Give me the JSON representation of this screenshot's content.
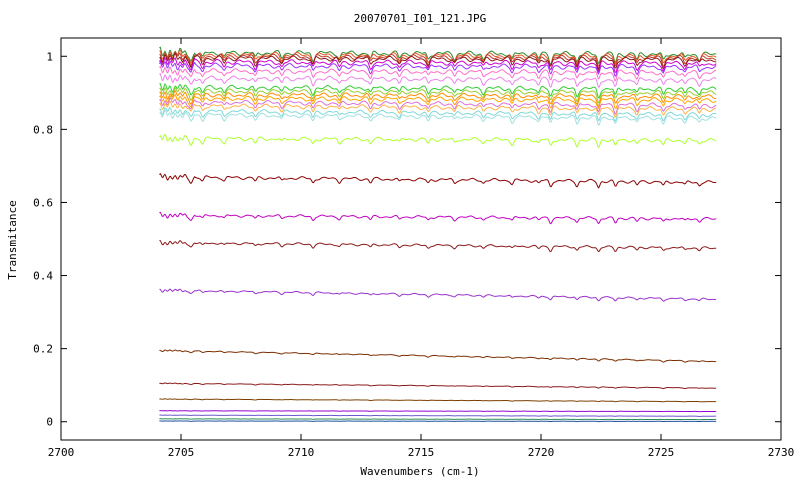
{
  "chart_data": {
    "type": "line",
    "title": "20070701_I01_121.JPG",
    "xlabel": "Wavenumbers (cm-1)",
    "ylabel": "Transmitance",
    "xlim": [
      2700,
      2730
    ],
    "ylim": [
      -0.05,
      1.05
    ],
    "x_ticks": [
      2700,
      2705,
      2710,
      2715,
      2720,
      2725,
      2730
    ],
    "y_ticks": [
      0,
      0.2,
      0.4,
      0.6,
      0.8,
      1
    ],
    "x_tick_labels": [
      "2700",
      "2705",
      "2710",
      "2715",
      "2720",
      "2725",
      "2730"
    ],
    "y_tick_labels": [
      "0",
      "0.2",
      "0.4",
      "0.6",
      "0.8",
      "1"
    ],
    "x_range_data": [
      2704.1,
      2727.3
    ],
    "grid": false,
    "legend": "none",
    "series": [
      {
        "color": "#2d8c2d",
        "values": [
          1.01,
          1.005
        ]
      },
      {
        "color": "#e05a2a",
        "values": [
          1.005,
          1.0
        ]
      },
      {
        "color": "#c0392b",
        "values": [
          1.0,
          0.995
        ]
      },
      {
        "color": "#8b1a1a",
        "values": [
          0.995,
          0.99
        ]
      },
      {
        "color": "#cc00cc",
        "values": [
          0.985,
          0.98
        ]
      },
      {
        "color": "#9b30ff",
        "values": [
          0.975,
          0.97
        ]
      },
      {
        "color": "#ff6ec7",
        "values": [
          0.96,
          0.955
        ]
      },
      {
        "color": "#ee82ee",
        "values": [
          0.94,
          0.935
        ]
      },
      {
        "color": "#32cd32",
        "values": [
          0.915,
          0.91
        ]
      },
      {
        "color": "#9acd32",
        "values": [
          0.905,
          0.9
        ]
      },
      {
        "color": "#ff8c00",
        "values": [
          0.895,
          0.89
        ]
      },
      {
        "color": "#ffa500",
        "values": [
          0.885,
          0.88
        ]
      },
      {
        "color": "#da70d6",
        "values": [
          0.875,
          0.865
        ]
      },
      {
        "color": "#ffb347",
        "values": [
          0.865,
          0.855
        ]
      },
      {
        "color": "#7fd8d8",
        "values": [
          0.85,
          0.84
        ]
      },
      {
        "color": "#a0e0e0",
        "values": [
          0.84,
          0.83
        ]
      },
      {
        "color": "#adff2f",
        "values": [
          0.775,
          0.77
        ]
      },
      {
        "color": "#8b0000",
        "values": [
          0.67,
          0.655
        ]
      },
      {
        "color": "#c000c0",
        "values": [
          0.565,
          0.555
        ]
      },
      {
        "color": "#8b1a1a",
        "values": [
          0.49,
          0.475
        ]
      },
      {
        "color": "#9932cc",
        "values": [
          0.36,
          0.335
        ]
      },
      {
        "color": "#7b2d00",
        "values": [
          0.195,
          0.165
        ]
      },
      {
        "color": "#8b1a1a",
        "values": [
          0.105,
          0.092
        ]
      },
      {
        "color": "#7b3f00",
        "values": [
          0.062,
          0.055
        ]
      },
      {
        "color": "#9400d3",
        "values": [
          0.03,
          0.028
        ]
      },
      {
        "color": "#6a5acd",
        "values": [
          0.018,
          0.015
        ]
      },
      {
        "color": "#2e8b57",
        "values": [
          0.008,
          0.006
        ]
      },
      {
        "color": "#1e50a0",
        "values": [
          0.002,
          0.001
        ]
      }
    ]
  }
}
